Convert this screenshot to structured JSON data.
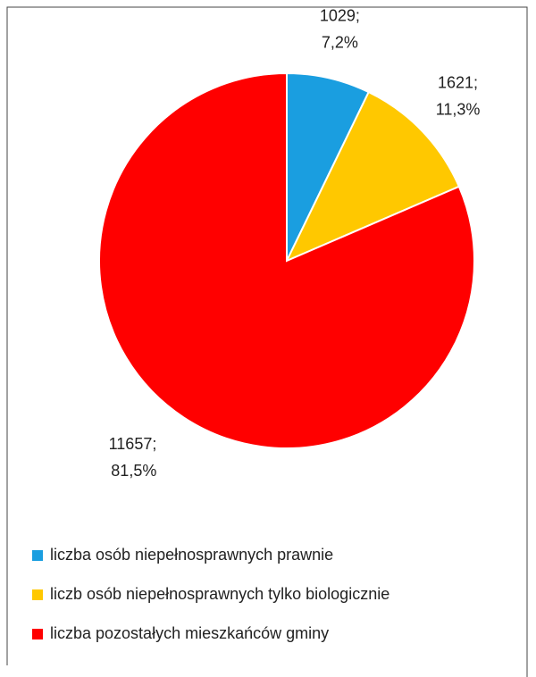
{
  "chart_data": {
    "type": "pie",
    "categories": [
      "liczba osób niepełnosprawnych prawnie",
      "liczb osób niepełnosprawnych tylko biologicznie",
      "liczba pozostałych mieszkańców gminy"
    ],
    "values": [
      1029,
      1621,
      11657
    ],
    "value_labels": [
      [
        "1029;",
        "7,2%"
      ],
      [
        "1621;",
        "11,3%"
      ],
      [
        "11657;",
        "81,5%"
      ]
    ],
    "colors": [
      "#1a9ee0",
      "#ffc800",
      "#ff0000"
    ],
    "legend": "bottom"
  }
}
